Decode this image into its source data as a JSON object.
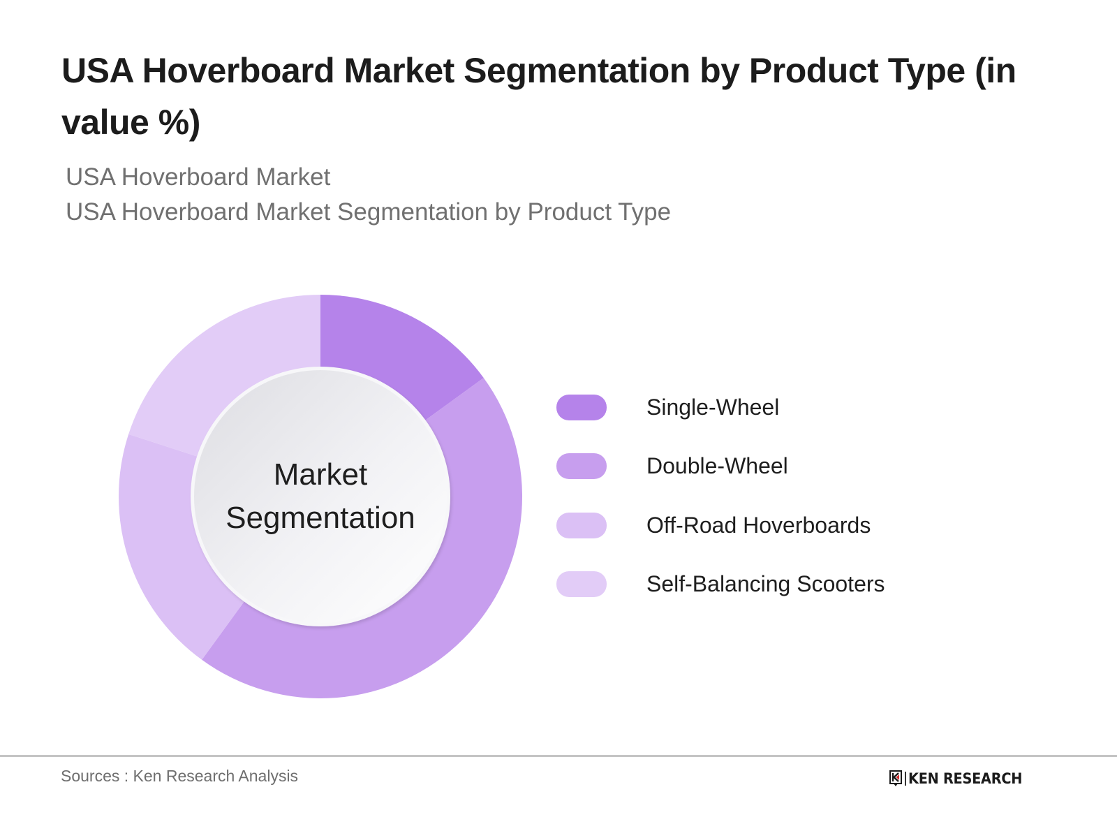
{
  "header": {
    "title": "USA Hoverboard Market Segmentation by Product Type (in value %)",
    "subtitle_line1": "USA Hoverboard Market",
    "subtitle_line2": "USA Hoverboard Market Segmentation by Product Type"
  },
  "center_label": {
    "line1": "Market",
    "line2": "Segmentation"
  },
  "legend": {
    "items": [
      {
        "label": "Single-Wheel",
        "color": "#B583EA"
      },
      {
        "label": "Double-Wheel",
        "color": "#C79EEE"
      },
      {
        "label": "Off-Road Hoverboards",
        "color": "#DBC0F5"
      },
      {
        "label": "Self-Balancing Scooters",
        "color": "#E2CCF7"
      }
    ]
  },
  "footer": {
    "sources": "Sources : Ken Research Analysis",
    "logo_text": "KEN RESEARCH",
    "logo_accent_color": "#D32F2F"
  },
  "chart_data": {
    "type": "pie",
    "variant": "donut",
    "title": "USA Hoverboard Market Segmentation by Product Type (in value %)",
    "subtitle": "USA Hoverboard Market / USA Hoverboard Market Segmentation by Product Type",
    "center_text": "Market Segmentation",
    "categories": [
      "Single-Wheel",
      "Double-Wheel",
      "Off-Road Hoverboards",
      "Self-Balancing Scooters"
    ],
    "values": [
      15,
      45,
      20,
      20
    ],
    "unit": "%",
    "colors": [
      "#B583EA",
      "#C79EEE",
      "#DBC0F5",
      "#E2CCF7"
    ],
    "start_angle": "12 o'clock, clockwise",
    "legend_position": "right",
    "data_labels": "none shown"
  }
}
